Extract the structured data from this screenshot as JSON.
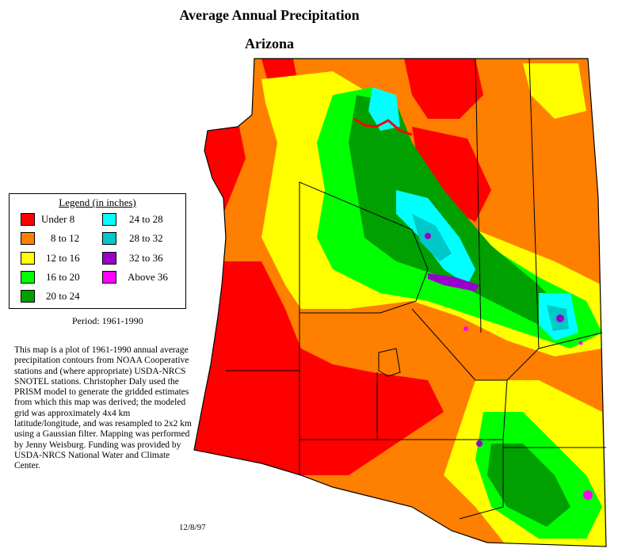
{
  "title": "Average Annual Precipitation",
  "subtitle": "Arizona",
  "legend": {
    "title": "Legend (in inches)",
    "items": [
      {
        "label": "Under 8",
        "color": "#ff0000"
      },
      {
        "label": "8 to 12",
        "color": "#ff7f00"
      },
      {
        "label": "12 to 16",
        "color": "#ffff00"
      },
      {
        "label": "16 to 20",
        "color": "#00ff00"
      },
      {
        "label": "20 to 24",
        "color": "#00a000"
      },
      {
        "label": "24 to 28",
        "color": "#00ffff"
      },
      {
        "label": "28 to 32",
        "color": "#00c8c8"
      },
      {
        "label": "32 to 36",
        "color": "#9900cc"
      },
      {
        "label": "Above 36",
        "color": "#ff00ff"
      }
    ]
  },
  "period": "Period: 1961-1990",
  "description": "This map is a plot of 1961-1990 annual average precipitation contours from NOAA Cooperative stations and (where appropriate) USDA-NRCS SNOTEL stations. Christopher Daly used the PRISM model to generate the gridded estimates from which this map was derived; the modeled grid was approximately 4x4 km latitude/longitude, and was resampled to 2x2 km using a Gaussian filter. Mapping was performed by Jenny Weisburg. Funding was provided by USDA-NRCS National Water and Climate Center.",
  "date": "12/8/97"
}
